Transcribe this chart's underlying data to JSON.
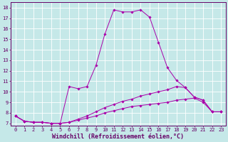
{
  "xlabel": "Windchill (Refroidissement éolien,°C)",
  "xlim": [
    -0.5,
    23.5
  ],
  "ylim": [
    6.8,
    18.5
  ],
  "xticks": [
    0,
    1,
    2,
    3,
    4,
    5,
    6,
    7,
    8,
    9,
    10,
    11,
    12,
    13,
    14,
    15,
    16,
    17,
    18,
    19,
    20,
    21,
    22,
    23
  ],
  "yticks": [
    7,
    8,
    9,
    10,
    11,
    12,
    13,
    14,
    15,
    16,
    17,
    18
  ],
  "bg_color": "#c5e8e8",
  "line_color": "#aa00aa",
  "grid_color": "#ffffff",
  "series1_y": [
    7.7,
    7.2,
    7.1,
    7.1,
    7.0,
    7.0,
    10.5,
    10.3,
    10.5,
    12.5,
    15.5,
    17.8,
    17.6,
    17.6,
    17.8,
    17.1,
    14.7,
    12.3,
    11.1,
    10.4,
    9.5,
    9.2,
    8.1,
    8.1
  ],
  "series2_y": [
    7.7,
    7.2,
    7.1,
    7.1,
    7.0,
    7.0,
    7.1,
    7.4,
    7.7,
    8.1,
    8.5,
    8.8,
    9.1,
    9.3,
    9.6,
    9.8,
    10.0,
    10.2,
    10.5,
    10.4,
    9.5,
    9.2,
    8.1,
    8.1
  ],
  "series3_y": [
    7.7,
    7.2,
    7.1,
    7.1,
    7.0,
    7.0,
    7.1,
    7.3,
    7.5,
    7.7,
    8.0,
    8.2,
    8.4,
    8.6,
    8.7,
    8.8,
    8.9,
    9.0,
    9.2,
    9.3,
    9.4,
    9.0,
    8.1,
    8.1
  ],
  "font_color": "#660066",
  "tick_fontsize": 5.0,
  "label_fontsize": 6.0
}
